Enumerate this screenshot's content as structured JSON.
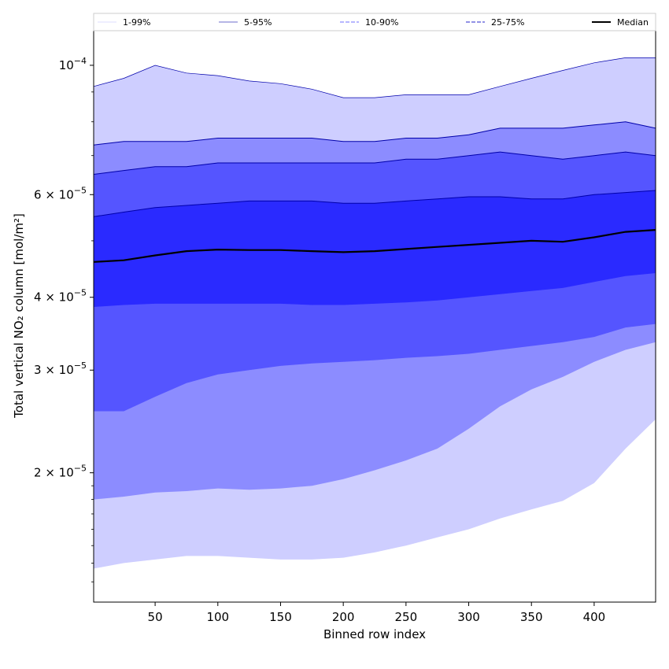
{
  "chart_data": {
    "type": "area",
    "xlabel": "Binned row index",
    "ylabel": "Total vertical NO₂ column [mol/m²]",
    "xlim": [
      1,
      449
    ],
    "ylim": [
      1.2e-05,
      0.000115
    ],
    "yscale": "log",
    "xticks": [
      50,
      100,
      150,
      200,
      250,
      300,
      350,
      400
    ],
    "yticks": [
      {
        "value": 2e-05,
        "mant": "2",
        "exp": "−5"
      },
      {
        "value": 3e-05,
        "mant": "3",
        "exp": "−5"
      },
      {
        "value": 4e-05,
        "mant": "4",
        "exp": "−5"
      },
      {
        "value": 6e-05,
        "mant": "6",
        "exp": "−5"
      },
      {
        "value": 0.0001,
        "mant": "10",
        "exp": "−4"
      }
    ],
    "legend": {
      "placement": "top",
      "entries": [
        {
          "label": "1-99%",
          "color": "#e4e4ff",
          "style": "thin"
        },
        {
          "label": "5-95%",
          "color": "#8a8ad8",
          "style": "thin"
        },
        {
          "label": "10-90%",
          "color": "#8c8cff",
          "style": "dashed"
        },
        {
          "label": "25-75%",
          "color": "#5050d8",
          "style": "dashed"
        },
        {
          "label": "Median",
          "color": "#000000",
          "style": "solid"
        }
      ]
    },
    "x": [
      1,
      25,
      50,
      75,
      100,
      125,
      150,
      175,
      200,
      225,
      250,
      275,
      300,
      325,
      350,
      375,
      400,
      425,
      449
    ],
    "bands": [
      {
        "name": "1-99%",
        "color": "#ceceff",
        "upper": [
          9.2e-05,
          9.5e-05,
          0.0001,
          9.7e-05,
          9.6e-05,
          9.4e-05,
          9.3e-05,
          9.1e-05,
          8.8e-05,
          8.8e-05,
          8.9e-05,
          8.9e-05,
          8.9e-05,
          9.2e-05,
          9.5e-05,
          9.8e-05,
          0.000101,
          0.000103,
          0.000103
        ],
        "lower": [
          1.37e-05,
          1.4e-05,
          1.42e-05,
          1.44e-05,
          1.44e-05,
          1.43e-05,
          1.42e-05,
          1.42e-05,
          1.43e-05,
          1.46e-05,
          1.5e-05,
          1.55e-05,
          1.6e-05,
          1.67e-05,
          1.73e-05,
          1.79e-05,
          1.92e-05,
          2.2e-05,
          2.47e-05
        ]
      },
      {
        "name": "5-95%",
        "color": "#8c8cff",
        "upper": [
          7.3e-05,
          7.4e-05,
          7.4e-05,
          7.4e-05,
          7.5e-05,
          7.5e-05,
          7.5e-05,
          7.5e-05,
          7.4e-05,
          7.4e-05,
          7.5e-05,
          7.5e-05,
          7.6e-05,
          7.8e-05,
          7.8e-05,
          7.8e-05,
          7.9e-05,
          8e-05,
          7.8e-05
        ],
        "lower": [
          1.8e-05,
          1.82e-05,
          1.85e-05,
          1.86e-05,
          1.88e-05,
          1.87e-05,
          1.88e-05,
          1.9e-05,
          1.95e-05,
          2.02e-05,
          2.1e-05,
          2.2e-05,
          2.38e-05,
          2.6e-05,
          2.78e-05,
          2.92e-05,
          3.1e-05,
          3.25e-05,
          3.35e-05
        ]
      },
      {
        "name": "10-90%",
        "color": "#5555ff",
        "upper": [
          6.5e-05,
          6.6e-05,
          6.7e-05,
          6.7e-05,
          6.8e-05,
          6.8e-05,
          6.8e-05,
          6.8e-05,
          6.8e-05,
          6.8e-05,
          6.9e-05,
          6.9e-05,
          7e-05,
          7.1e-05,
          7e-05,
          6.9e-05,
          7e-05,
          7.1e-05,
          7e-05
        ],
        "lower": [
          2.55e-05,
          2.55e-05,
          2.7e-05,
          2.85e-05,
          2.95e-05,
          3e-05,
          3.05e-05,
          3.08e-05,
          3.1e-05,
          3.12e-05,
          3.15e-05,
          3.17e-05,
          3.2e-05,
          3.25e-05,
          3.3e-05,
          3.35e-05,
          3.42e-05,
          3.55e-05,
          3.6e-05
        ]
      },
      {
        "name": "25-75%",
        "color": "#2a2aff",
        "upper": [
          5.5e-05,
          5.6e-05,
          5.7e-05,
          5.75e-05,
          5.8e-05,
          5.85e-05,
          5.85e-05,
          5.85e-05,
          5.8e-05,
          5.8e-05,
          5.85e-05,
          5.9e-05,
          5.95e-05,
          5.95e-05,
          5.9e-05,
          5.9e-05,
          6e-05,
          6.05e-05,
          6.1e-05
        ],
        "lower": [
          3.85e-05,
          3.88e-05,
          3.9e-05,
          3.9e-05,
          3.9e-05,
          3.9e-05,
          3.9e-05,
          3.88e-05,
          3.88e-05,
          3.9e-05,
          3.92e-05,
          3.95e-05,
          4e-05,
          4.05e-05,
          4.1e-05,
          4.15e-05,
          4.25e-05,
          4.35e-05,
          4.4e-05
        ]
      }
    ],
    "median": {
      "name": "Median",
      "color": "#000000",
      "values": [
        4.6e-05,
        4.63e-05,
        4.72e-05,
        4.8e-05,
        4.83e-05,
        4.82e-05,
        4.82e-05,
        4.8e-05,
        4.78e-05,
        4.8e-05,
        4.84e-05,
        4.88e-05,
        4.92e-05,
        4.96e-05,
        5e-05,
        4.98e-05,
        5.07e-05,
        5.18e-05,
        5.22e-05
      ]
    }
  }
}
